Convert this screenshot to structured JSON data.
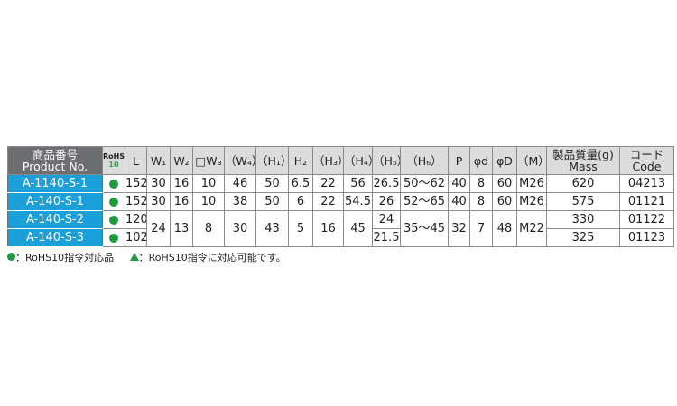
{
  "header": {
    "product_jp": "商品番号",
    "product_en": "Product No.",
    "rohs_top": "RoHS",
    "rohs_bottom": "10",
    "cols": [
      "L",
      "W₁",
      "W₂",
      "□W₃",
      "（W₄）",
      "（H₁）",
      "H₂",
      "（H₃）",
      "（H₄）",
      "（H₅）",
      "（H₆）",
      "P",
      "φd",
      "φD",
      "（M）"
    ],
    "mass_jp": "製品質量(g)",
    "mass_en": "Mass",
    "code_jp": "コード",
    "code_en": "Code"
  },
  "rows": [
    {
      "product": "A-1140-S-1",
      "rohs": "compliant",
      "L": "152",
      "W1": "30",
      "W2": "16",
      "W3": "10",
      "W4": "46",
      "H1": "50",
      "H2": "6.5",
      "H3": "22",
      "H4": "56",
      "H5": "26.5",
      "H6": "50～62",
      "P": "40",
      "d": "8",
      "D": "60",
      "M": "M26",
      "mass": "620",
      "code": "04213"
    },
    {
      "product": "A-140-S-1",
      "rohs": "compliant",
      "L": "152",
      "W1": "30",
      "W2": "16",
      "W3": "10",
      "W4": "38",
      "H1": "50",
      "H2": "6",
      "H3": "22",
      "H4": "54.5",
      "H5": "26",
      "H6": "52～65",
      "P": "40",
      "d": "8",
      "D": "60",
      "M": "M26",
      "mass": "575",
      "code": "01121"
    },
    {
      "product": "A-140-S-2",
      "rohs": "compliant",
      "L": "120",
      "H5": "24",
      "mass": "330",
      "code": "01122"
    },
    {
      "product": "A-140-S-3",
      "rohs": "compliant",
      "L": "102",
      "H5": "21.5",
      "mass": "325",
      "code": "01123"
    }
  ],
  "shared_s2_s3": {
    "W1": "24",
    "W2": "13",
    "W3": "8",
    "W4": "30",
    "H1": "43",
    "H2": "5",
    "H3": "16",
    "H4": "45",
    "H6": "35～45",
    "P": "32",
    "d": "7",
    "D": "48",
    "M": "M22"
  },
  "legend": {
    "circle": "：RoHS10指令対応品",
    "triangle": "：RoHS10指令に対応可能です。"
  },
  "colors": {
    "product_cell": "#1b9fd9",
    "header": "#dcdcdc",
    "rohs_dot": "#1f9a3f"
  }
}
